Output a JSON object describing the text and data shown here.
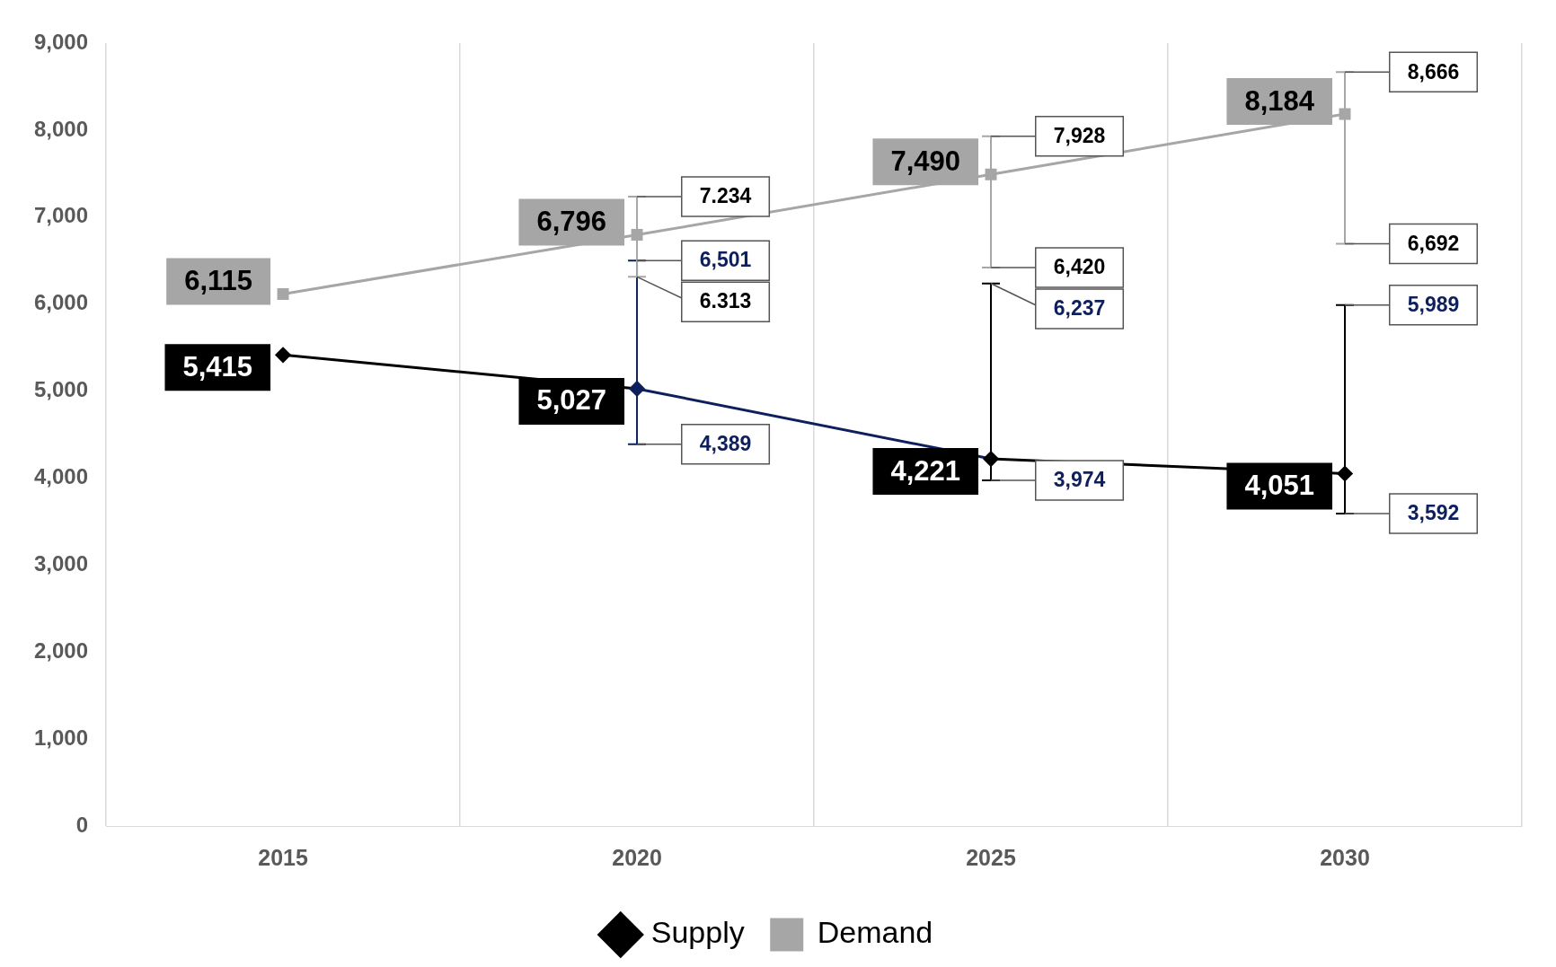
{
  "chart_data": {
    "type": "line",
    "categories": [
      "2015",
      "2020",
      "2025",
      "2030"
    ],
    "series": [
      {
        "name": "Supply",
        "color": "#000000",
        "colors": [
          "#000000",
          "#0d1f5c",
          "#000000",
          "#000000"
        ],
        "marker": "diamond",
        "values": [
          5415,
          5027,
          4221,
          4051
        ],
        "value_labels": [
          "5,415",
          "5,027",
          "4,221",
          "4,051"
        ],
        "errors": [
          null,
          [
            4389,
            6501
          ],
          [
            3974,
            6237
          ],
          [
            3592,
            5989
          ]
        ]
      },
      {
        "name": "Demand",
        "color": "#a6a6a6",
        "colors": [
          "#a6a6a6",
          "#a6a6a6",
          "#a6a6a6",
          "#a6a6a6"
        ],
        "marker": "square",
        "values": [
          6115,
          6796,
          7490,
          8184
        ],
        "value_labels": [
          "6,115",
          "6,796",
          "7,490",
          "8,184"
        ],
        "errors": [
          null,
          [
            6313,
            7234
          ],
          [
            6420,
            7928
          ],
          [
            6692,
            8666
          ]
        ]
      }
    ],
    "annotations": [
      {
        "text": "6,501",
        "x": "2020",
        "y": 6501
      },
      {
        "text": "4,389",
        "x": "2020",
        "y": 4389
      },
      {
        "text": "6,237",
        "x": "2025",
        "y": 6237
      },
      {
        "text": "3,974",
        "x": "2025",
        "y": 3974
      },
      {
        "text": "5,989",
        "x": "2030",
        "y": 5989
      },
      {
        "text": "3,592",
        "x": "2030",
        "y": 3592
      },
      {
        "text": "7.234",
        "x": "2020",
        "y": 7234
      },
      {
        "text": "6.313",
        "x": "2020",
        "y": 6313
      },
      {
        "text": "7,928",
        "x": "2025",
        "y": 7928
      },
      {
        "text": "6,420",
        "x": "2025",
        "y": 6420
      },
      {
        "text": "8,666",
        "x": "2030",
        "y": 8666
      },
      {
        "text": "6,692",
        "x": "2030",
        "y": 6692
      }
    ],
    "ylim": [
      0,
      9000
    ],
    "yticks": [
      0,
      {
        "value": 1000,
        "label": "1,000"
      },
      {
        "value": 2000,
        "label": "2,000"
      },
      {
        "value": 3000,
        "label": "3,000"
      },
      {
        "value": 4000,
        "label": "4,000"
      },
      {
        "value": 5000,
        "label": "5,000"
      },
      {
        "value": 6000,
        "label": "6,000"
      },
      {
        "value": 7000,
        "label": "7,000"
      },
      {
        "value": 8000,
        "label": "8,000"
      },
      {
        "value": 9000,
        "label": "9,000"
      }
    ],
    "grid": "x",
    "legend": "bottom",
    "line_style": "solid"
  }
}
